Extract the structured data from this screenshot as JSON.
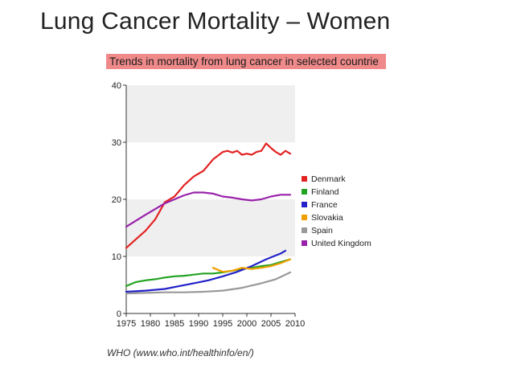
{
  "slide": {
    "title": "Lung Cancer Mortality – Women"
  },
  "source": "WHO (www.who.int/healthinfo/en/)",
  "chart_data": {
    "type": "line",
    "title": "Trends in mortality from lung cancer in selected countrie",
    "xlabel": "",
    "ylabel": "",
    "xlim": [
      1975,
      2010
    ],
    "ylim": [
      0,
      40
    ],
    "yticks": [
      0,
      10,
      20,
      30,
      40
    ],
    "xticks": [
      1975,
      1980,
      1985,
      1990,
      1995,
      2000,
      2005,
      2010
    ],
    "legend_position": "right",
    "series": [
      {
        "name": "Denmark",
        "color": "#e32222",
        "x": [
          1975,
          1977,
          1979,
          1981,
          1983,
          1985,
          1987,
          1989,
          1991,
          1993,
          1995,
          1996,
          1997,
          1998,
          1999,
          2000,
          2001,
          2002,
          2003,
          2004,
          2005,
          2006,
          2007,
          2008,
          2009
        ],
        "y": [
          11.5,
          13,
          14.5,
          16.5,
          19.5,
          20.5,
          22.5,
          24,
          25,
          27,
          28.3,
          28.5,
          28.2,
          28.5,
          27.8,
          28,
          27.8,
          28.3,
          28.5,
          29.8,
          29,
          28.3,
          27.8,
          28.5,
          28
        ]
      },
      {
        "name": "Finland",
        "color": "#22a322",
        "x": [
          1975,
          1977,
          1979,
          1981,
          1983,
          1985,
          1987,
          1989,
          1991,
          1993,
          1995,
          1997,
          1999,
          2001,
          2003,
          2005,
          2007,
          2009
        ],
        "y": [
          4.8,
          5.5,
          5.8,
          6,
          6.3,
          6.5,
          6.6,
          6.8,
          7,
          7,
          7.2,
          7.5,
          7.8,
          8,
          8.3,
          8.5,
          9,
          9.5
        ]
      },
      {
        "name": "France",
        "color": "#2222c8",
        "x": [
          1975,
          1979,
          1983,
          1986,
          1989,
          1992,
          1995,
          1998,
          2001,
          2004,
          2007,
          2008
        ],
        "y": [
          3.8,
          4,
          4.3,
          4.8,
          5.3,
          5.8,
          6.5,
          7.3,
          8.3,
          9.5,
          10.5,
          11
        ]
      },
      {
        "name": "Slovakia",
        "color": "#f0a000",
        "x": [
          1993,
          1995,
          1997,
          1999,
          2001,
          2003,
          2005,
          2007,
          2009
        ],
        "y": [
          8,
          7.3,
          7.5,
          8,
          7.8,
          8,
          8.3,
          8.8,
          9.5
        ]
      },
      {
        "name": "Spain",
        "color": "#999999",
        "x": [
          1975,
          1979,
          1983,
          1987,
          1991,
          1995,
          1999,
          2003,
          2006,
          2009
        ],
        "y": [
          3.5,
          3.6,
          3.7,
          3.7,
          3.8,
          4,
          4.5,
          5.3,
          6,
          7.2
        ]
      },
      {
        "name": "United Kingdom",
        "color": "#9922aa",
        "x": [
          1975,
          1979,
          1983,
          1987,
          1989,
          1991,
          1993,
          1995,
          1997,
          1999,
          2001,
          2003,
          2005,
          2007,
          2009
        ],
        "y": [
          15.2,
          17.3,
          19.3,
          20.7,
          21.2,
          21.2,
          21,
          20.5,
          20.3,
          20,
          19.8,
          20,
          20.5,
          20.8,
          20.8
        ]
      }
    ]
  }
}
